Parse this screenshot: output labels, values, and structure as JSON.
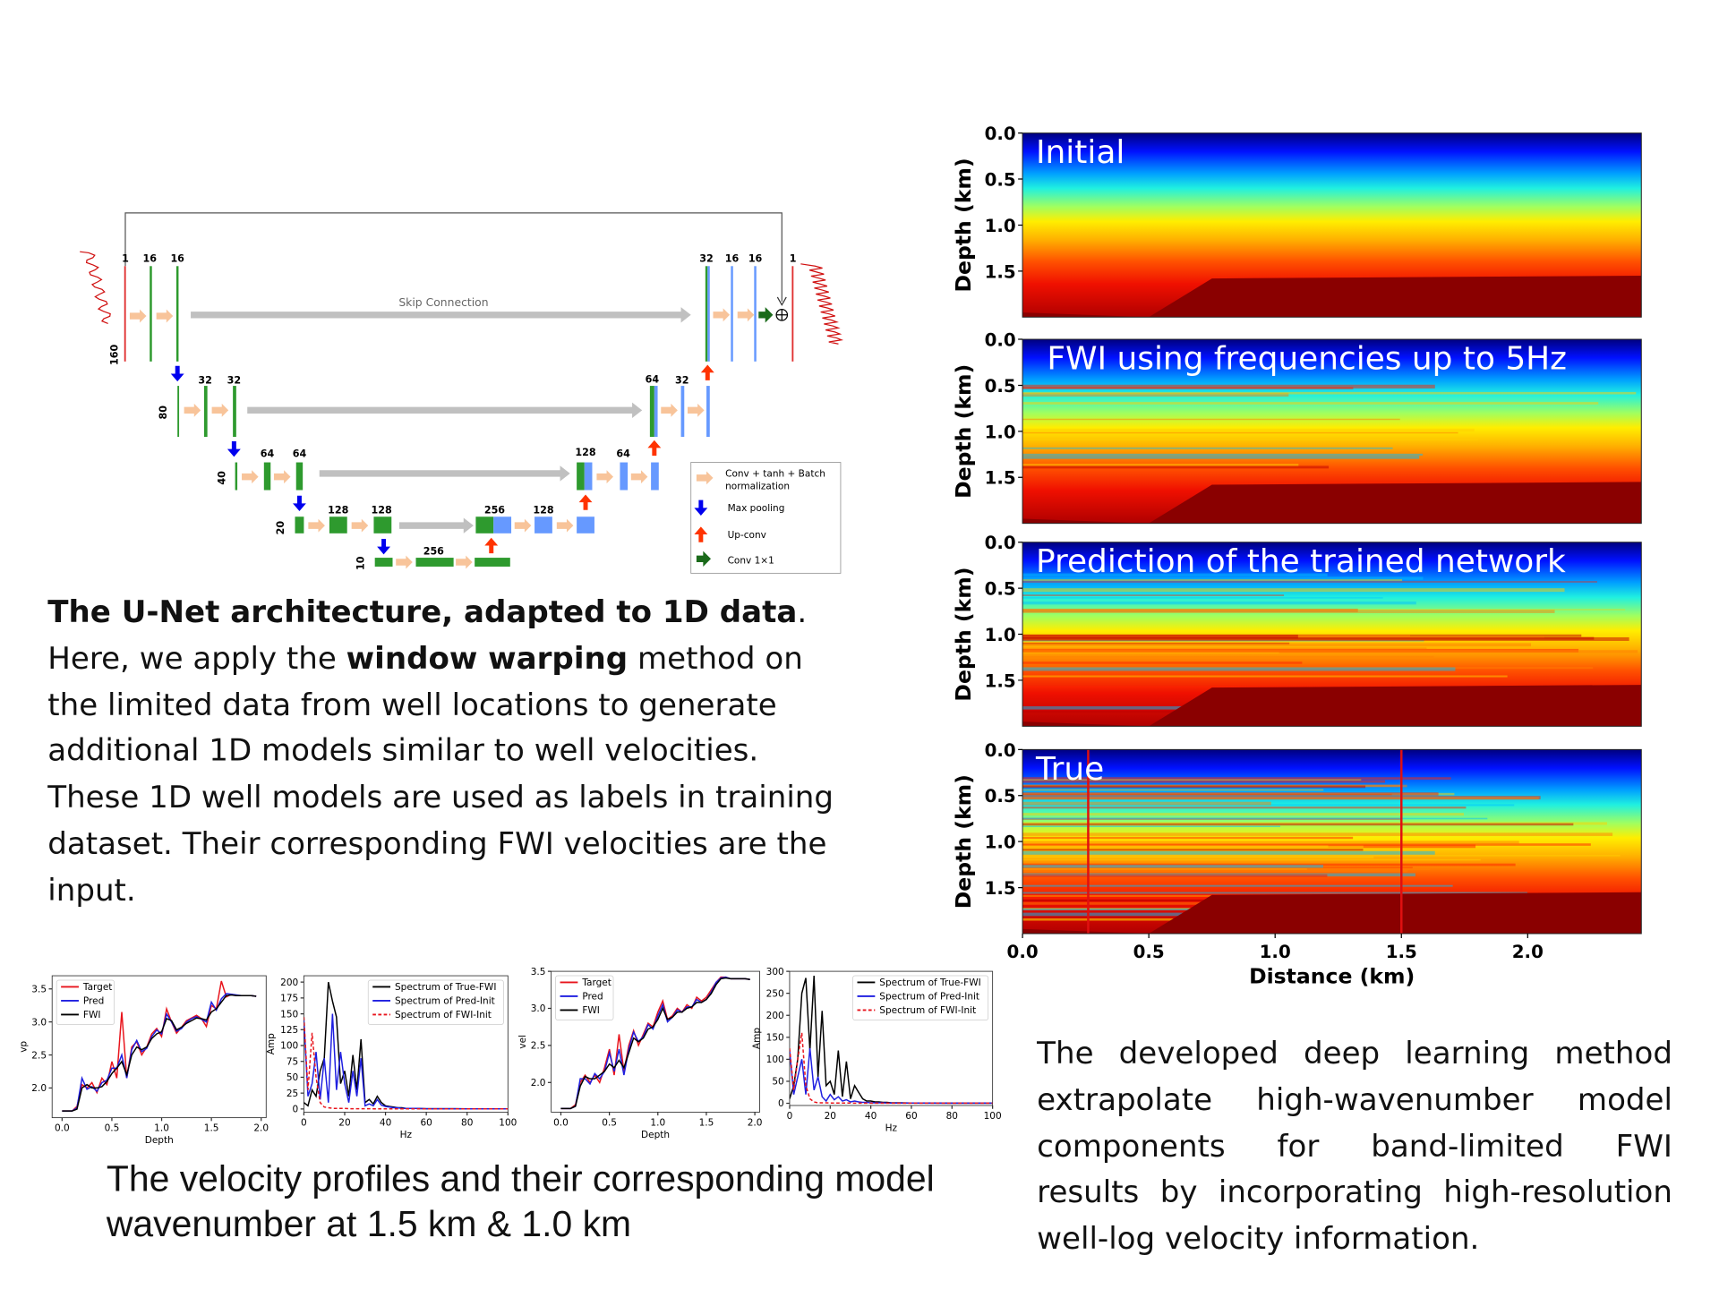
{
  "unet": {
    "skip_label": "Skip Connection",
    "enc_labels": [
      "1",
      "16",
      "16",
      "32",
      "32",
      "64",
      "64",
      "128",
      "128",
      "256"
    ],
    "dec_labels": [
      "32",
      "16",
      "16",
      "1",
      "64",
      "32",
      "128",
      "64",
      "256",
      "128"
    ],
    "size_labels": [
      "160",
      "80",
      "40",
      "20",
      "10"
    ],
    "legend": [
      {
        "label1": "Conv + tanh + Batch",
        "label2": "normalization",
        "icon": "peach-arrow-icon"
      },
      {
        "label1": "Max pooling",
        "icon": "blue-down-arrow-icon"
      },
      {
        "label1": "Up-conv",
        "icon": "red-up-arrow-icon"
      },
      {
        "label1": "Conv 1×1",
        "icon": "green-arrow-icon"
      }
    ],
    "colors": {
      "enc": "#2e9a2e",
      "dec": "#6699ff",
      "conv": "#f8c49a",
      "pool": "#0000ee",
      "up": "#ff3300",
      "skip": "#c0c0c0"
    }
  },
  "left_paragraph": {
    "bold1": "The U-Net architecture, adapted to 1D data",
    "t1": ". Here, we apply the ",
    "bold2": "window warping",
    "t2": " method on the limited data from well locations to generate additional 1D models similar to well velocities. These 1D well models are used as labels in training dataset. Their corresponding FWI velocities are the input."
  },
  "bottom_caption": "The velocity profiles and their corresponding model wavenumber at 1.5 km & 1.0 km",
  "right_caption": {
    "lines": [
      "The developed deep learning method",
      "extrapolate high-wavenumber model",
      "components for band-limited FWI",
      "results by incorporating high-resolution"
    ],
    "last": "well-log velocity information."
  },
  "chart_data": [
    {
      "type": "heatmap",
      "title": "Initial",
      "ylabel": "Depth (km)",
      "xlabel": "Distance (km)",
      "yticks": [
        "0.0",
        "0.5",
        "1.0",
        "1.5"
      ],
      "xticks": [
        "0.0",
        "0.5",
        "1.0",
        "1.5",
        "2.0"
      ],
      "xlim": [
        0,
        2.45
      ],
      "ylim": [
        2.0,
        0
      ],
      "detail": 0
    },
    {
      "type": "heatmap",
      "title": "FWI using frequencies up to 5Hz",
      "ylabel": "Depth (km)",
      "yticks": [
        "0.0",
        "0.5",
        "1.0",
        "1.5"
      ],
      "xlim": [
        0,
        2.45
      ],
      "ylim": [
        2.0,
        0
      ],
      "detail": 14
    },
    {
      "type": "heatmap",
      "title": "Prediction of the trained network",
      "ylabel": "Depth (km)",
      "yticks": [
        "0.0",
        "0.5",
        "1.0",
        "1.5"
      ],
      "xlim": [
        0,
        2.45
      ],
      "ylim": [
        2.0,
        0
      ],
      "detail": 32
    },
    {
      "type": "heatmap",
      "title": "True",
      "ylabel": "Depth (km)",
      "yticks": [
        "0.0",
        "0.5",
        "1.0",
        "1.5"
      ],
      "xlim": [
        0,
        2.45
      ],
      "ylim": [
        2.0,
        0
      ],
      "detail": 55,
      "well_lines_km": [
        0.26,
        1.5
      ]
    },
    {
      "type": "line",
      "xlabel": "Depth",
      "ylabel": "vp",
      "xlim": [
        -0.1,
        2.05
      ],
      "ylim": [
        1.55,
        3.7
      ],
      "xticks": [
        "0.0",
        "0.5",
        "1.0",
        "1.5",
        "2.0"
      ],
      "yticks": [
        "2.0",
        "2.5",
        "3.0",
        "3.5"
      ],
      "x": [
        0,
        0.05,
        0.1,
        0.15,
        0.2,
        0.25,
        0.3,
        0.35,
        0.4,
        0.45,
        0.5,
        0.55,
        0.6,
        0.65,
        0.7,
        0.75,
        0.8,
        0.85,
        0.9,
        0.95,
        1.0,
        1.05,
        1.1,
        1.15,
        1.2,
        1.25,
        1.3,
        1.35,
        1.4,
        1.45,
        1.5,
        1.55,
        1.6,
        1.65,
        1.7,
        1.75,
        1.8,
        1.85,
        1.9,
        1.95
      ],
      "series": [
        {
          "name": "Target",
          "color": "#e8141c",
          "values": [
            1.65,
            1.65,
            1.65,
            1.72,
            2.05,
            2.0,
            2.08,
            1.93,
            2.15,
            2.05,
            2.4,
            2.15,
            3.15,
            2.15,
            2.62,
            2.7,
            2.5,
            2.62,
            2.82,
            2.9,
            2.78,
            3.2,
            3.0,
            2.83,
            2.92,
            3.02,
            3.06,
            3.1,
            3.05,
            2.93,
            3.25,
            3.2,
            3.62,
            3.38,
            3.42,
            3.4,
            3.4,
            3.4,
            3.4,
            3.39
          ]
        },
        {
          "name": "Pred",
          "color": "#1f1fe0",
          "values": [
            1.65,
            1.65,
            1.65,
            1.7,
            2.15,
            1.98,
            2.02,
            1.95,
            2.08,
            2.12,
            2.3,
            2.3,
            2.5,
            2.15,
            2.58,
            2.72,
            2.55,
            2.6,
            2.78,
            2.88,
            2.82,
            3.12,
            3.0,
            2.86,
            2.9,
            3.0,
            3.05,
            3.08,
            3.04,
            3.0,
            3.3,
            3.18,
            3.35,
            3.43,
            3.42,
            3.41,
            3.4,
            3.4,
            3.4,
            3.39
          ]
        },
        {
          "name": "FWI",
          "color": "#000000",
          "values": [
            1.65,
            1.65,
            1.65,
            1.68,
            2.0,
            2.05,
            2.0,
            2.0,
            2.02,
            2.1,
            2.22,
            2.3,
            2.4,
            2.2,
            2.5,
            2.62,
            2.58,
            2.62,
            2.75,
            2.82,
            2.85,
            3.05,
            3.02,
            2.88,
            2.92,
            2.98,
            3.02,
            3.06,
            3.05,
            3.03,
            3.15,
            3.2,
            3.3,
            3.4,
            3.41,
            3.4,
            3.4,
            3.4,
            3.4,
            3.39
          ]
        }
      ]
    },
    {
      "type": "line",
      "xlabel": "Hz",
      "ylabel": "Amp",
      "xlim": [
        0,
        100
      ],
      "ylim": [
        -5,
        210
      ],
      "xticks": [
        "0",
        "20",
        "40",
        "60",
        "80",
        "100"
      ],
      "yticks": [
        "0",
        "25",
        "50",
        "75",
        "100",
        "125",
        "150",
        "175",
        "200"
      ],
      "x": [
        0,
        2,
        4,
        6,
        8,
        10,
        12,
        14,
        16,
        18,
        20,
        22,
        24,
        26,
        28,
        30,
        32,
        34,
        36,
        38,
        40,
        42,
        44,
        46,
        48,
        50,
        55,
        60,
        70,
        80,
        90,
        100
      ],
      "series": [
        {
          "name": "Spectrum of True-FWI",
          "color": "#000000",
          "values": [
            10,
            5,
            30,
            20,
            60,
            80,
            200,
            170,
            145,
            40,
            60,
            20,
            85,
            30,
            110,
            10,
            15,
            8,
            20,
            10,
            5,
            4,
            3,
            2,
            2,
            1,
            1,
            0.5,
            0.5,
            0.3,
            0.3,
            0.3
          ]
        },
        {
          "name": "Spectrum of Pred-Init",
          "color": "#1f1fe0",
          "values": [
            140,
            20,
            40,
            90,
            15,
            80,
            10,
            150,
            30,
            90,
            40,
            10,
            60,
            20,
            80,
            5,
            8,
            5,
            15,
            6,
            4,
            3,
            2,
            2,
            1,
            1,
            1,
            0.5,
            0.5,
            0.3,
            0.3,
            0.3
          ]
        },
        {
          "name": "Spectrum of FWI-Init",
          "color": "#e8141c",
          "dashed": true,
          "values": [
            145,
            30,
            120,
            50,
            10,
            3,
            2,
            1,
            1,
            1,
            1,
            0.5,
            0.5,
            0.5,
            0.5,
            0.5,
            0.5,
            0.3,
            0.3,
            0.3,
            0.3,
            0.3,
            0.3,
            0.3,
            0.3,
            0.3,
            0.3,
            0.3,
            0.3,
            0.3,
            0.3,
            0.3
          ]
        }
      ]
    },
    {
      "type": "line",
      "xlabel": "Depth",
      "ylabel": "vel",
      "xlim": [
        -0.1,
        2.05
      ],
      "ylim": [
        1.6,
        3.5
      ],
      "xticks": [
        "0.0",
        "0.5",
        "1.0",
        "1.5",
        "2.0"
      ],
      "yticks": [
        "2.0",
        "2.5",
        "3.0",
        "3.5"
      ],
      "x": [
        0,
        0.05,
        0.1,
        0.15,
        0.2,
        0.25,
        0.3,
        0.35,
        0.4,
        0.45,
        0.5,
        0.55,
        0.6,
        0.65,
        0.7,
        0.75,
        0.8,
        0.85,
        0.9,
        0.95,
        1.0,
        1.05,
        1.1,
        1.15,
        1.2,
        1.25,
        1.3,
        1.35,
        1.4,
        1.45,
        1.5,
        1.55,
        1.6,
        1.65,
        1.7,
        1.75,
        1.8,
        1.85,
        1.9,
        1.95
      ],
      "series": [
        {
          "name": "Target",
          "color": "#e8141c",
          "values": [
            1.65,
            1.65,
            1.65,
            1.7,
            2.0,
            2.1,
            2.0,
            2.1,
            2.0,
            2.2,
            2.45,
            2.1,
            2.65,
            2.15,
            2.5,
            2.7,
            2.5,
            2.65,
            2.8,
            2.75,
            2.95,
            3.1,
            2.85,
            2.9,
            3.0,
            2.95,
            3.05,
            3.0,
            3.15,
            3.1,
            3.15,
            3.25,
            3.35,
            3.42,
            3.42,
            3.4,
            3.4,
            3.4,
            3.4,
            3.39
          ]
        },
        {
          "name": "Pred",
          "color": "#1f1fe0",
          "values": [
            1.65,
            1.65,
            1.65,
            1.68,
            2.05,
            2.05,
            1.98,
            2.12,
            2.05,
            2.15,
            2.4,
            2.15,
            2.45,
            2.1,
            2.45,
            2.68,
            2.55,
            2.62,
            2.78,
            2.72,
            2.9,
            3.05,
            2.82,
            2.88,
            2.98,
            2.95,
            3.02,
            3.02,
            3.12,
            3.08,
            3.12,
            3.22,
            3.35,
            3.41,
            3.42,
            3.4,
            3.4,
            3.4,
            3.4,
            3.39
          ]
        },
        {
          "name": "FWI",
          "color": "#000000",
          "values": [
            1.65,
            1.65,
            1.65,
            1.68,
            1.95,
            2.08,
            2.05,
            2.05,
            2.1,
            2.15,
            2.25,
            2.2,
            2.3,
            2.2,
            2.4,
            2.6,
            2.55,
            2.6,
            2.72,
            2.75,
            2.85,
            3.0,
            2.85,
            2.88,
            2.95,
            2.95,
            3.0,
            3.02,
            3.08,
            3.08,
            3.12,
            3.2,
            3.32,
            3.4,
            3.41,
            3.4,
            3.4,
            3.4,
            3.4,
            3.39
          ]
        }
      ]
    },
    {
      "type": "line",
      "xlabel": "Hz",
      "ylabel": "Amp",
      "xlim": [
        0,
        100
      ],
      "ylim": [
        -5,
        300
      ],
      "xticks": [
        "0",
        "20",
        "40",
        "60",
        "80",
        "100"
      ],
      "yticks": [
        "0",
        "50",
        "100",
        "150",
        "200",
        "250",
        "300"
      ],
      "x": [
        0,
        2,
        4,
        6,
        8,
        10,
        12,
        14,
        16,
        18,
        20,
        22,
        24,
        26,
        28,
        30,
        32,
        34,
        36,
        38,
        40,
        42,
        44,
        46,
        48,
        50,
        55,
        60,
        70,
        80,
        90,
        100
      ],
      "series": [
        {
          "name": "Spectrum of True-FWI",
          "color": "#000000",
          "values": [
            10,
            40,
            100,
            250,
            285,
            120,
            290,
            60,
            210,
            40,
            50,
            20,
            120,
            15,
            95,
            10,
            40,
            25,
            10,
            5,
            5,
            3,
            3,
            2,
            2,
            1,
            1,
            0.5,
            0.5,
            0.3,
            0.3,
            0.3
          ]
        },
        {
          "name": "Spectrum of Pred-Init",
          "color": "#1f1fe0",
          "values": [
            120,
            20,
            60,
            100,
            20,
            125,
            30,
            60,
            15,
            5,
            20,
            8,
            15,
            5,
            8,
            3,
            5,
            3,
            2,
            2,
            1,
            1,
            1,
            1,
            0.5,
            0.5,
            0.5,
            0.5,
            0.3,
            0.3,
            0.3,
            0.3
          ]
        },
        {
          "name": "Spectrum of FWI-Init",
          "color": "#e8141c",
          "dashed": true,
          "values": [
            125,
            30,
            100,
            160,
            40,
            10,
            3,
            1,
            1,
            1,
            0.5,
            0.5,
            0.5,
            0.5,
            0.5,
            0.5,
            0.3,
            0.3,
            0.3,
            0.3,
            0.3,
            0.3,
            0.3,
            0.3,
            0.3,
            0.3,
            0.3,
            0.3,
            0.3,
            0.3,
            0.3,
            0.3
          ]
        }
      ]
    }
  ]
}
